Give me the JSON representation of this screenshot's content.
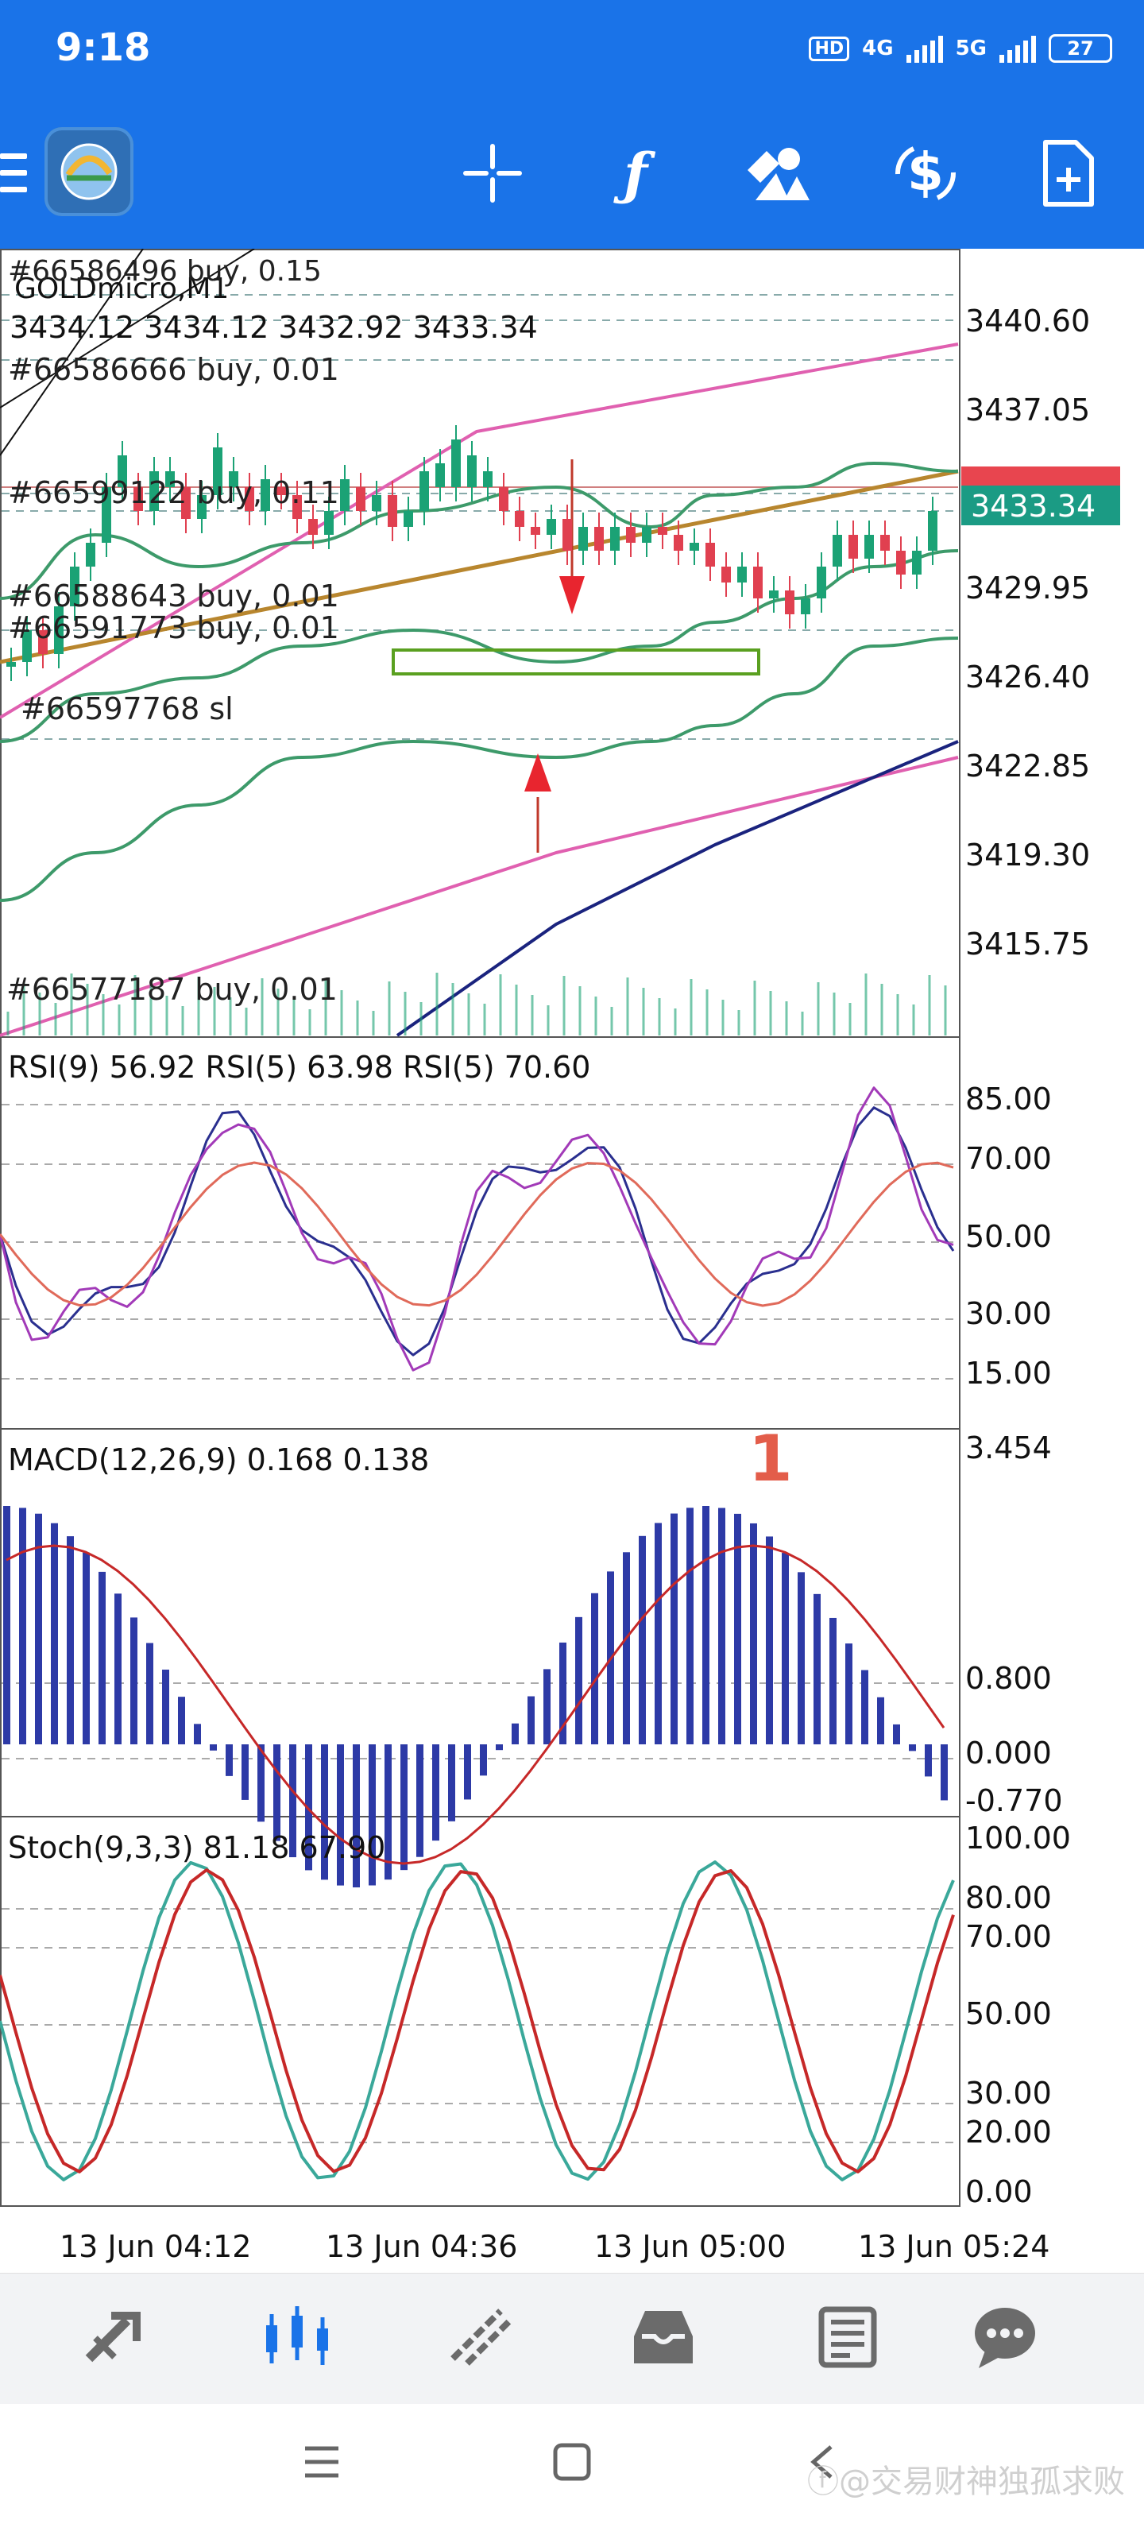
{
  "status_bar": {
    "time": "9:18",
    "network_1": "HD",
    "network_2": "4G",
    "network_3": "5G",
    "battery": "27"
  },
  "toolbar": {
    "crosshair_icon": "crosshair-icon",
    "indicators_icon": "function-icon",
    "objects_icon": "shapes-icon",
    "trade_icon": "dollar-icon",
    "new_order_icon": "new-document-icon"
  },
  "price_pane": {
    "header_symbol": "GOLDmicro,M1",
    "header_ohlc": "3434.12 3434.12 3432.92 3433.34",
    "price_labels": [
      "3440.60",
      "3437.05",
      "3429.95",
      "3426.40",
      "3422.85",
      "3419.30",
      "3415.75"
    ],
    "current_price": "3433.34",
    "order_labels": [
      "#66586496 buy, 0.15",
      "#66586666 buy, 0.01",
      "#66599122 buy, 0.11",
      "#66588643 buy, 0.01",
      "#66591773 buy, 0.01",
      "#66597768 sl",
      "#66577187 buy, 0.01"
    ]
  },
  "rsi_pane": {
    "header": "RSI(9) 56.92 RSI(5) 63.98 RSI(5) 70.60",
    "levels": [
      "85.00",
      "70.00",
      "50.00",
      "30.00",
      "15.00"
    ]
  },
  "macd_pane": {
    "header": "MACD(12,26,9) 0.168 0.138",
    "annotation": "1",
    "levels": [
      "3.454",
      "0.800",
      "0.000",
      "-0.770"
    ]
  },
  "stoch_pane": {
    "header": "Stoch(9,3,3) 81.18 67.90",
    "levels": [
      "100.00",
      "80.00",
      "70.00",
      "50.00",
      "30.00",
      "20.00",
      "0.00"
    ]
  },
  "time_axis": [
    "13 Jun 04:12",
    "13 Jun 04:36",
    "13 Jun 05:00",
    "13 Jun 05:24"
  ],
  "bottom_nav": [
    "quotes-icon",
    "chart-icon",
    "trade-icon",
    "history-icon",
    "news-icon",
    "chat-icon"
  ],
  "watermark": "ⓕ@交易财神独孤求败",
  "colors": {
    "brand": "#1a73e8",
    "bull": "#1ba275",
    "bear": "#e04050",
    "bollinger": "#3d9a6a",
    "ma_pink": "#e060b0",
    "ma_navy": "#1a237e",
    "trend": "#b8862e",
    "rsi_a": "#2a2f8f",
    "rsi_b": "#a23ab8",
    "rsi_c": "#e06a5a",
    "macd_hist": "#2d3aa6",
    "macd_signal": "#c62828",
    "stoch_k": "#3aa89a",
    "stoch_d": "#c62828",
    "nav_active": "#1a73e8"
  }
}
